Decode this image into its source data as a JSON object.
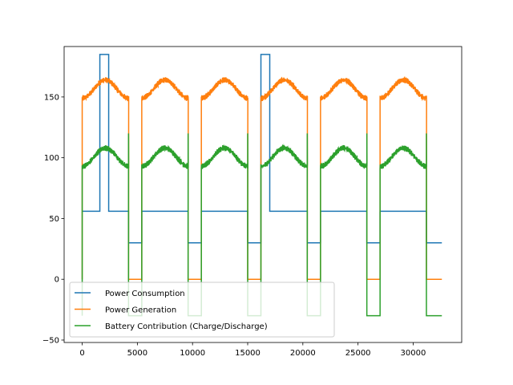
{
  "chart_data": {
    "type": "line",
    "title": "",
    "xlabel": "",
    "ylabel": "",
    "xlim": [
      -1638,
      34398
    ],
    "ylim": [
      -52,
      191.5
    ],
    "xticks": [
      0,
      5000,
      10000,
      15000,
      20000,
      25000,
      30000
    ],
    "xtick_labels": [
      "0",
      "5000",
      "10000",
      "15000",
      "20000",
      "25000",
      "30000"
    ],
    "yticks": [
      -50,
      0,
      50,
      100,
      150
    ],
    "ytick_labels": [
      "−50",
      "0",
      "50",
      "100",
      "150"
    ],
    "grid": false,
    "legend_placement": "lower-left",
    "series": [
      {
        "name": "Power Consumption",
        "color": "#1f77b4",
        "x": [
          0,
          1600,
          1600,
          2400,
          2400,
          4200,
          4200,
          5400,
          5400,
          9600,
          9600,
          10800,
          10800,
          15000,
          15000,
          16200,
          16200,
          17000,
          17000,
          20400,
          20400,
          21600,
          21600,
          25800,
          25800,
          27000,
          27000,
          31200,
          31200,
          32600
        ],
        "y": [
          56,
          56,
          185,
          185,
          56,
          56,
          30,
          30,
          56,
          56,
          30,
          30,
          56,
          56,
          30,
          30,
          185,
          185,
          56,
          56,
          30,
          30,
          56,
          56,
          30,
          30,
          56,
          56,
          30,
          30
        ]
      },
      {
        "name": "Power Generation",
        "color": "#ff7f0e",
        "segments": [
          [
            0,
            4200
          ],
          [
            5400,
            9600
          ],
          [
            10800,
            15000
          ],
          [
            16200,
            20400
          ],
          [
            21600,
            25800
          ],
          [
            27000,
            31200
          ]
        ],
        "segment_base": 149,
        "segment_peak": 164,
        "night_value": 0
      },
      {
        "name": "Battery Contribution (Charge/Discharge)",
        "color": "#2ca02c",
        "segments": [
          [
            0,
            4200
          ],
          [
            5400,
            9600
          ],
          [
            10800,
            15000
          ],
          [
            16200,
            20400
          ],
          [
            21600,
            25800
          ],
          [
            27000,
            31200
          ]
        ],
        "segment_base": 93,
        "segment_peak": 108,
        "night_value": -30,
        "spike_low": -30,
        "spike_high": 120
      }
    ]
  }
}
